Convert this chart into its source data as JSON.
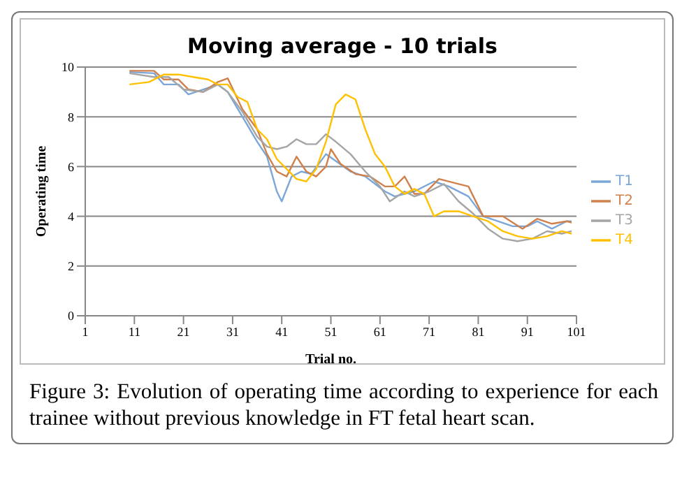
{
  "chart_data": {
    "type": "line",
    "title": "Moving average - 10 trials",
    "xlabel": "Trial no.",
    "ylabel": "Operating time",
    "annotations": [
      "Figure 3: Evolution of operating time according to experience for each trainee without previous knowledge in FT fetal heart scan."
    ],
    "xlim": [
      1,
      101
    ],
    "xticks": [
      1,
      11,
      21,
      31,
      41,
      51,
      61,
      71,
      81,
      91,
      101
    ],
    "ylim": [
      0,
      10
    ],
    "yticks": [
      0,
      2,
      4,
      6,
      8,
      10
    ],
    "grid": "y",
    "legend": "right",
    "marker": "none",
    "line_style": "solid",
    "series": [
      {
        "name": "T1",
        "color": "#7ba7d8",
        "x": [
          10,
          15,
          17,
          20,
          22,
          25,
          28,
          30,
          33,
          36,
          38,
          40,
          41,
          43,
          45,
          47,
          50,
          55,
          58,
          62,
          64,
          68,
          72,
          75,
          79,
          82,
          85,
          88,
          91,
          93,
          96,
          99,
          100
        ],
        "values": [
          9.8,
          9.75,
          9.3,
          9.3,
          8.9,
          9.1,
          9.3,
          9.0,
          8.0,
          7.0,
          6.4,
          5.0,
          4.6,
          5.6,
          5.8,
          5.7,
          6.5,
          5.8,
          5.6,
          5.0,
          4.8,
          5.0,
          5.4,
          5.2,
          4.8,
          4.0,
          3.8,
          3.6,
          3.6,
          3.8,
          3.5,
          3.8,
          3.8
        ]
      },
      {
        "name": "T2",
        "color": "#d0804b",
        "x": [
          10,
          15,
          17,
          20,
          22,
          25,
          28,
          30,
          33,
          36,
          38,
          40,
          42,
          44,
          46,
          48,
          50,
          51,
          53,
          56,
          59,
          62,
          64,
          66,
          68,
          70,
          73,
          77,
          79,
          82,
          86,
          90,
          93,
          96,
          99,
          100
        ],
        "values": [
          9.85,
          9.85,
          9.5,
          9.5,
          9.1,
          9.0,
          9.4,
          9.55,
          8.3,
          7.5,
          6.5,
          5.8,
          5.6,
          6.4,
          5.8,
          5.6,
          6.0,
          6.7,
          6.1,
          5.7,
          5.6,
          5.2,
          5.2,
          5.6,
          4.9,
          4.9,
          5.5,
          5.3,
          5.2,
          4.0,
          4.0,
          3.5,
          3.9,
          3.7,
          3.8,
          3.75
        ]
      },
      {
        "name": "T3",
        "color": "#a5a5a5",
        "x": [
          10,
          15,
          18,
          21,
          25,
          28,
          30,
          33,
          36,
          38,
          40,
          42,
          44,
          46,
          48,
          50,
          52,
          55,
          58,
          61,
          63,
          66,
          68,
          71,
          74,
          77,
          80,
          83,
          86,
          89,
          92,
          95,
          98,
          100
        ],
        "values": [
          9.75,
          9.6,
          9.6,
          9.1,
          9.0,
          9.3,
          9.0,
          8.2,
          7.2,
          6.8,
          6.7,
          6.8,
          7.1,
          6.9,
          6.9,
          7.3,
          7.0,
          6.5,
          5.8,
          5.2,
          4.6,
          5.0,
          4.8,
          5.0,
          5.3,
          4.6,
          4.1,
          3.5,
          3.1,
          3.0,
          3.1,
          3.4,
          3.3,
          3.4
        ]
      },
      {
        "name": "T4",
        "color": "#ffc000",
        "x": [
          10,
          14,
          17,
          20,
          23,
          26,
          28,
          30,
          32,
          34,
          36,
          38,
          40,
          42,
          44,
          46,
          48,
          50,
          52,
          54,
          56,
          58,
          60,
          62,
          64,
          66,
          68,
          70,
          72,
          74,
          77,
          80,
          83,
          86,
          89,
          92,
          95,
          98,
          100
        ],
        "values": [
          9.3,
          9.4,
          9.7,
          9.7,
          9.6,
          9.5,
          9.3,
          9.3,
          8.8,
          8.6,
          7.5,
          7.1,
          6.3,
          5.9,
          5.5,
          5.4,
          5.9,
          7.0,
          8.5,
          8.9,
          8.7,
          7.5,
          6.5,
          6.0,
          5.2,
          4.9,
          5.1,
          4.9,
          4.0,
          4.2,
          4.2,
          4.0,
          3.8,
          3.4,
          3.2,
          3.1,
          3.2,
          3.4,
          3.3
        ]
      }
    ]
  }
}
